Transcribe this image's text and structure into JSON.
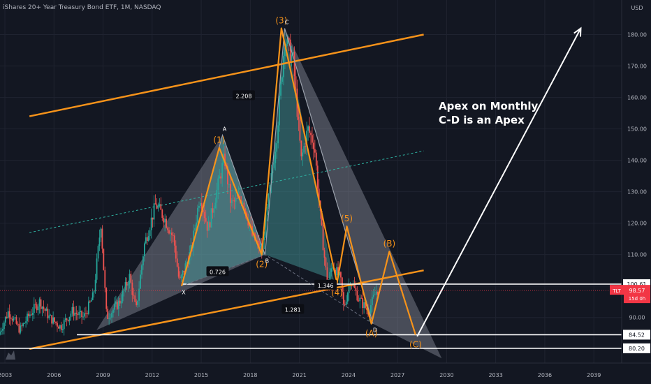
{
  "header": {
    "title": "iShares 20+ Year Treasury Bond ETF, 1M, NASDAQ"
  },
  "price_axis": {
    "currency": "USD",
    "ticks": [
      "180.00",
      "170.00",
      "160.00",
      "150.00",
      "140.00",
      "130.00",
      "120.00",
      "110.00",
      "100.00",
      "90.00"
    ],
    "tags": [
      {
        "label": "100.61",
        "value": 100.61,
        "style": "line"
      },
      {
        "label": "98.57",
        "value": 98.57,
        "style": "last"
      },
      {
        "label": "84.52",
        "value": 84.52,
        "style": "line"
      },
      {
        "label": "80.20",
        "value": 80.2,
        "style": "line"
      }
    ],
    "ticker_badge": "TLT",
    "countdown": "15d 0h"
  },
  "time_axis": {
    "ticks": [
      "2003",
      "2006",
      "2009",
      "2012",
      "2015",
      "2018",
      "2021",
      "2024",
      "2027",
      "2030",
      "2033",
      "2036",
      "2039"
    ]
  },
  "annotation": {
    "line1": "Apex on Monthly",
    "line2": "C-D is an Apex"
  },
  "pattern_labels": {
    "wave1": "(1)",
    "wave2": "(2)",
    "wave3": "(3)",
    "wave4": "(4)",
    "wave5": "(5)",
    "waveA": "(A)",
    "waveB": "(B)",
    "waveC": "(C)",
    "pointX": "X",
    "pointA": "A",
    "pointB": "B",
    "pointC": "C",
    "pointD": "D"
  },
  "ratios": {
    "xb": "0.726",
    "bc": "2.208",
    "xd": "1.281",
    "cd": "1.346"
  },
  "colors": {
    "background": "#131722",
    "grid": "#1f2330",
    "up": "#26a69a",
    "down": "#ef5350",
    "orange": "#f7931a",
    "white": "#ffffff",
    "teal_fill": "#4aa5a5",
    "gray_fill": "#8a8f9c",
    "tag_red": "#f23645"
  },
  "chart_data": {
    "type": "candlestick",
    "title": "iShares 20+ Year Treasury Bond ETF, 1M, NASDAQ",
    "x_unit": "year",
    "y_unit": "USD",
    "xlim": [
      2002.7,
      2040.7
    ],
    "ylim": [
      75.5,
      191
    ],
    "grid": true,
    "price_path": [
      [
        2002.7,
        84.5
      ],
      [
        2003.3,
        92
      ],
      [
        2004.0,
        86
      ],
      [
        2004.6,
        91
      ],
      [
        2005.2,
        95
      ],
      [
        2005.8,
        90
      ],
      [
        2006.5,
        87
      ],
      [
        2007.2,
        92
      ],
      [
        2007.9,
        90
      ],
      [
        2008.5,
        97
      ],
      [
        2008.95,
        120
      ],
      [
        2009.3,
        90
      ],
      [
        2010.1,
        95
      ],
      [
        2010.7,
        103
      ],
      [
        2011.1,
        92
      ],
      [
        2011.6,
        113
      ],
      [
        2012.3,
        126
      ],
      [
        2012.8,
        122
      ],
      [
        2013.4,
        115
      ],
      [
        2013.75,
        101
      ],
      [
        2014.5,
        112
      ],
      [
        2015.0,
        129
      ],
      [
        2015.5,
        118
      ],
      [
        2016.5,
        141
      ],
      [
        2016.9,
        126
      ],
      [
        2017.6,
        128
      ],
      [
        2018.2,
        116
      ],
      [
        2018.8,
        111
      ],
      [
        2019.7,
        148
      ],
      [
        2020.2,
        179
      ],
      [
        2020.7,
        172
      ],
      [
        2021.2,
        140
      ],
      [
        2021.6,
        150
      ],
      [
        2022.0,
        145
      ],
      [
        2022.4,
        120
      ],
      [
        2022.8,
        100
      ],
      [
        2023.1,
        107
      ],
      [
        2023.6,
        102
      ],
      [
        2023.8,
        93
      ],
      [
        2024.2,
        102
      ],
      [
        2024.7,
        96
      ],
      [
        2025.3,
        92
      ],
      [
        2025.8,
        98.6
      ]
    ],
    "elliott_waves": [
      {
        "label": "(1)",
        "x": 2016.1,
        "y": 144
      },
      {
        "label": "(2)",
        "x": 2018.7,
        "y": 110
      },
      {
        "label": "(3)",
        "x": 2019.9,
        "y": 182
      },
      {
        "label": "(4)",
        "x": 2023.3,
        "y": 101
      },
      {
        "label": "(5)",
        "x": 2023.9,
        "y": 119
      },
      {
        "label": "(A)",
        "x": 2025.4,
        "y": 88
      },
      {
        "label": "(B)",
        "x": 2026.5,
        "y": 111
      },
      {
        "label": "(C)",
        "x": 2028.1,
        "y": 84.5
      }
    ],
    "harmonic_points": [
      {
        "label": "X",
        "x": 2013.8,
        "y": 100
      },
      {
        "label": "A",
        "x": 2016.3,
        "y": 148
      },
      {
        "label": "B",
        "x": 2018.9,
        "y": 110
      },
      {
        "label": "C",
        "x": 2020.1,
        "y": 182
      },
      {
        "label": "D",
        "x": 2025.5,
        "y": 88
      }
    ],
    "fib_ratios": [
      {
        "label": "0.726",
        "value": 0.726
      },
      {
        "label": "2.208",
        "value": 2.208
      },
      {
        "label": "1.281",
        "value": 1.281
      },
      {
        "label": "1.346",
        "value": 1.346
      }
    ],
    "horizontal_levels": [
      100.61,
      84.52,
      80.2
    ],
    "last_price": 98.57
  }
}
